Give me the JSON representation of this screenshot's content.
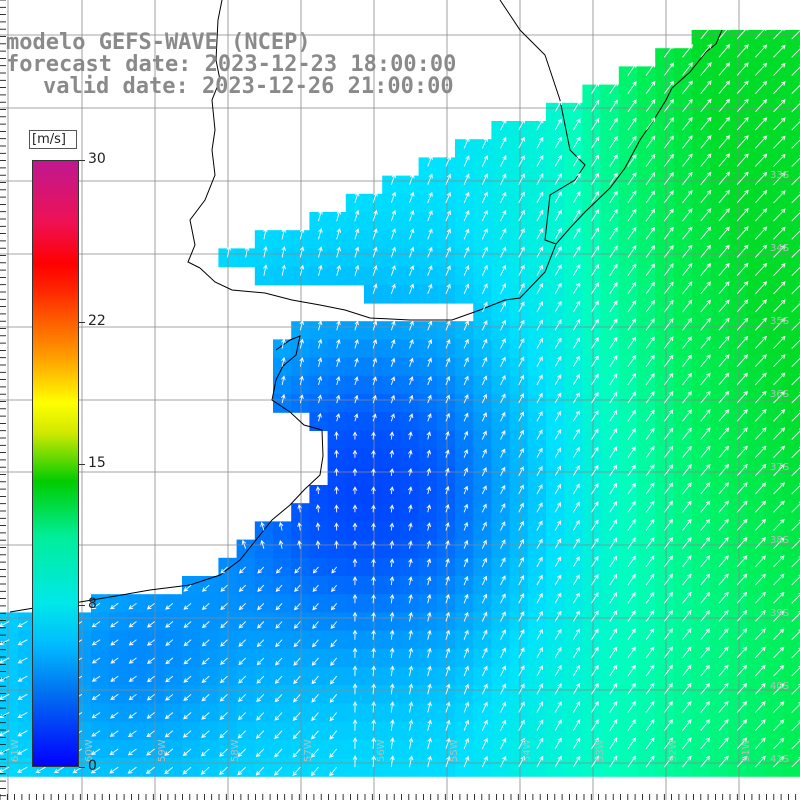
{
  "title": {
    "line1": "modelo GEFS-WAVE (NCEP)",
    "line2": "forecast date: 2023-12-23 18:00:00",
    "line3": "valid date: 2023-12-26 21:00:00"
  },
  "colorbar": {
    "units": "[m/s]",
    "ticks": [
      {
        "label": "30",
        "value": 30
      },
      {
        "label": "22",
        "value": 22
      },
      {
        "label": "15",
        "value": 15
      },
      {
        "label": "8",
        "value": 8
      },
      {
        "label": "0",
        "value": 0
      }
    ],
    "colors": [
      "#0000ff",
      "#00bbff",
      "#00e8e8",
      "#00cc00",
      "#ffff00",
      "#ff0000",
      "#c01890"
    ]
  },
  "map": {
    "lat_labels": [
      "33S",
      "34S",
      "35S",
      "36S",
      "37S",
      "38S",
      "39S",
      "40S",
      "41S"
    ],
    "lon_labels": [
      "61W",
      "60W",
      "59W",
      "58W",
      "57W",
      "56W",
      "55W",
      "54W",
      "53W",
      "52W",
      "51W"
    ],
    "colors": {
      "ocean_low": "#0030ff",
      "ocean_mid": "#0088ff",
      "ocean_high": "#00e8ff",
      "ocean_max": "#00ff80",
      "land": "#ffffff",
      "grid": "#888888",
      "coast": "#000000"
    }
  }
}
